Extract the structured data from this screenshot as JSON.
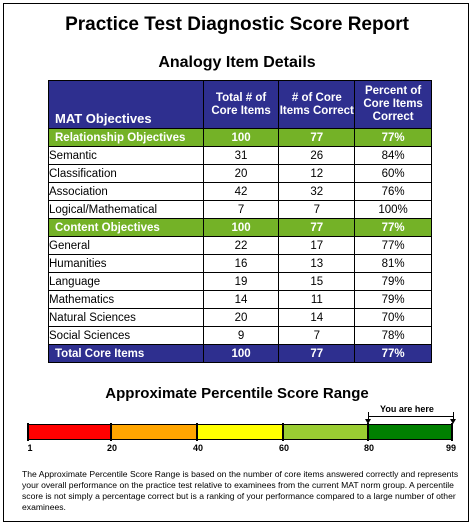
{
  "header": {
    "main_title": "Practice Test Diagnostic Score Report",
    "section_title": "Analogy Item Details"
  },
  "table": {
    "headers": [
      "MAT Objectives",
      "Total # of Core Items",
      "# of Core Items Correct",
      "Percent of Core Items Correct"
    ],
    "groups": [
      {
        "name": "Relationship Objectives",
        "total": "100",
        "correct": "77",
        "percent": "77%",
        "rows": [
          {
            "name": "Semantic",
            "total": "31",
            "correct": "26",
            "percent": "84%"
          },
          {
            "name": "Classification",
            "total": "20",
            "correct": "12",
            "percent": "60%"
          },
          {
            "name": "Association",
            "total": "42",
            "correct": "32",
            "percent": "76%"
          },
          {
            "name": "Logical/Mathematical",
            "total": "7",
            "correct": "7",
            "percent": "100%"
          }
        ]
      },
      {
        "name": "Content Objectives",
        "total": "100",
        "correct": "77",
        "percent": "77%",
        "rows": [
          {
            "name": "General",
            "total": "22",
            "correct": "17",
            "percent": "77%"
          },
          {
            "name": "Humanities",
            "total": "16",
            "correct": "13",
            "percent": "81%"
          },
          {
            "name": "Language",
            "total": "19",
            "correct": "15",
            "percent": "79%"
          },
          {
            "name": "Mathematics",
            "total": "14",
            "correct": "11",
            "percent": "79%"
          },
          {
            "name": "Natural Sciences",
            "total": "20",
            "correct": "14",
            "percent": "70%"
          },
          {
            "name": "Social Sciences",
            "total": "9",
            "correct": "7",
            "percent": "78%"
          }
        ]
      }
    ],
    "footer": {
      "name": "Total Core Items",
      "total": "100",
      "correct": "77",
      "percent": "77%"
    }
  },
  "percentile": {
    "title": "Approximate Percentile Score Range",
    "you_are_here": "You are here",
    "range_low": 80,
    "range_high": 99,
    "ticks": [
      "1",
      "20",
      "40",
      "60",
      "80",
      "99"
    ],
    "segment_colors": [
      "#ff0000",
      "#ffa500",
      "#ffff00",
      "#9acd32",
      "#008000"
    ]
  },
  "footnote": "The Approximate Percentile Score Range is based on the number of core items answered correctly and represents your overall performance on the practice test relative to examinees from the current MAT norm group. A percentile score is not simply a percentage correct but is a ranking of your performance compared to a large number of other examinees."
}
